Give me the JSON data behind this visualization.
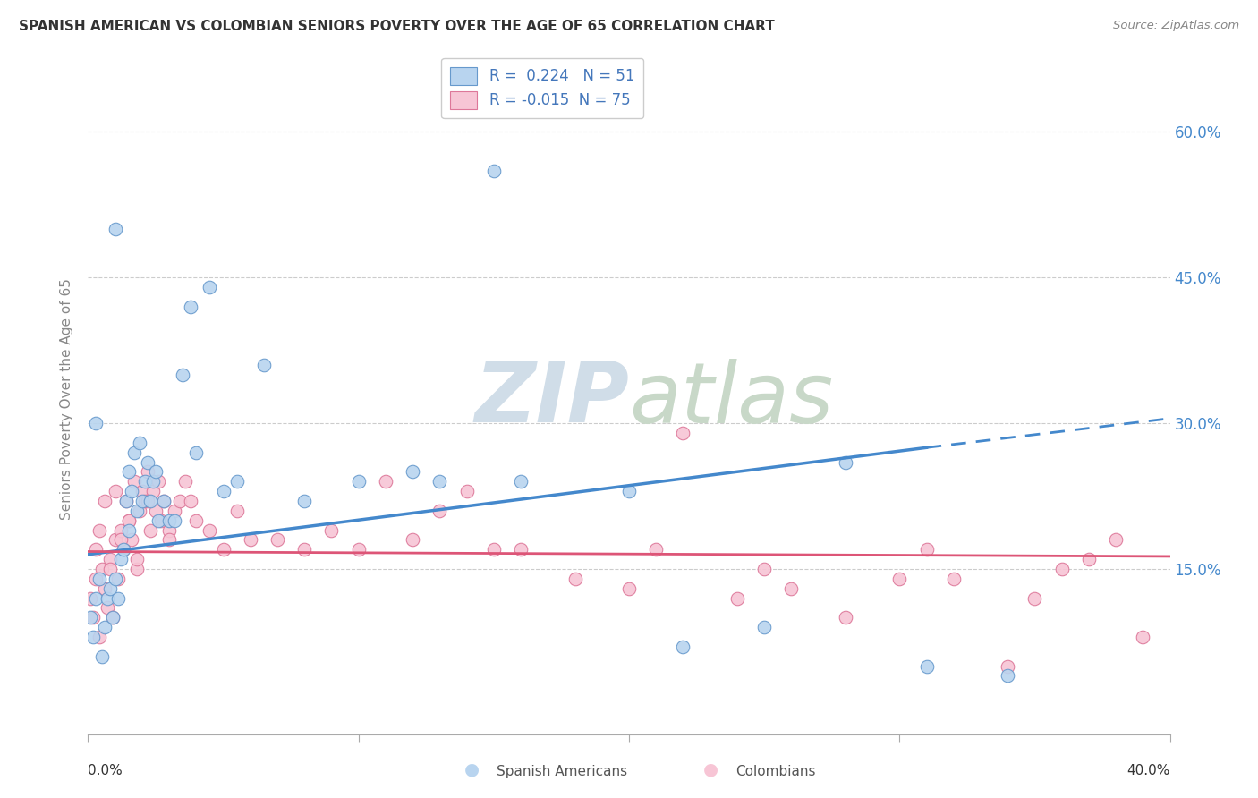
{
  "title": "SPANISH AMERICAN VS COLOMBIAN SENIORS POVERTY OVER THE AGE OF 65 CORRELATION CHART",
  "source": "Source: ZipAtlas.com",
  "ylabel": "Seniors Poverty Over the Age of 65",
  "ytick_labels": [
    "15.0%",
    "30.0%",
    "45.0%",
    "60.0%"
  ],
  "ytick_values": [
    0.15,
    0.3,
    0.45,
    0.6
  ],
  "xlim": [
    0.0,
    0.4
  ],
  "ylim": [
    -0.02,
    0.67
  ],
  "r_blue": 0.224,
  "n_blue": 51,
  "r_pink": -0.015,
  "n_pink": 75,
  "blue_fill_color": "#b8d4ef",
  "pink_fill_color": "#f7c5d5",
  "blue_edge_color": "#6699cc",
  "pink_edge_color": "#dd7799",
  "blue_line_color": "#4488cc",
  "pink_line_color": "#dd5577",
  "watermark_color": "#d0dde8",
  "watermark_color2": "#c8d8c8",
  "blue_trend_start_x": 0.0,
  "blue_trend_start_y": 0.165,
  "blue_trend_end_solid_x": 0.31,
  "blue_trend_end_solid_y": 0.275,
  "blue_trend_end_dashed_x": 0.4,
  "blue_trend_end_dashed_y": 0.305,
  "pink_trend_start_x": 0.0,
  "pink_trend_start_y": 0.168,
  "pink_trend_end_x": 0.4,
  "pink_trend_end_y": 0.163,
  "blue_x": [
    0.001,
    0.002,
    0.003,
    0.004,
    0.005,
    0.006,
    0.007,
    0.008,
    0.009,
    0.01,
    0.01,
    0.011,
    0.012,
    0.013,
    0.014,
    0.015,
    0.015,
    0.016,
    0.017,
    0.018,
    0.019,
    0.02,
    0.021,
    0.022,
    0.023,
    0.024,
    0.025,
    0.026,
    0.028,
    0.03,
    0.032,
    0.035,
    0.038,
    0.04,
    0.045,
    0.05,
    0.055,
    0.065,
    0.08,
    0.1,
    0.12,
    0.13,
    0.15,
    0.16,
    0.2,
    0.22,
    0.25,
    0.28,
    0.31,
    0.34,
    0.003
  ],
  "blue_y": [
    0.1,
    0.08,
    0.12,
    0.14,
    0.06,
    0.09,
    0.12,
    0.13,
    0.1,
    0.14,
    0.5,
    0.12,
    0.16,
    0.17,
    0.22,
    0.19,
    0.25,
    0.23,
    0.27,
    0.21,
    0.28,
    0.22,
    0.24,
    0.26,
    0.22,
    0.24,
    0.25,
    0.2,
    0.22,
    0.2,
    0.2,
    0.35,
    0.42,
    0.27,
    0.44,
    0.23,
    0.24,
    0.36,
    0.22,
    0.24,
    0.25,
    0.24,
    0.56,
    0.24,
    0.23,
    0.07,
    0.09,
    0.26,
    0.05,
    0.04,
    0.3
  ],
  "pink_x": [
    0.001,
    0.002,
    0.003,
    0.004,
    0.005,
    0.006,
    0.007,
    0.008,
    0.009,
    0.01,
    0.011,
    0.012,
    0.013,
    0.014,
    0.015,
    0.016,
    0.017,
    0.018,
    0.019,
    0.02,
    0.021,
    0.022,
    0.023,
    0.024,
    0.025,
    0.026,
    0.027,
    0.028,
    0.03,
    0.032,
    0.034,
    0.036,
    0.038,
    0.04,
    0.045,
    0.05,
    0.055,
    0.06,
    0.07,
    0.08,
    0.09,
    0.1,
    0.11,
    0.12,
    0.13,
    0.14,
    0.15,
    0.16,
    0.18,
    0.2,
    0.21,
    0.22,
    0.24,
    0.25,
    0.26,
    0.28,
    0.3,
    0.31,
    0.32,
    0.34,
    0.35,
    0.36,
    0.37,
    0.38,
    0.39,
    0.003,
    0.004,
    0.006,
    0.008,
    0.01,
    0.012,
    0.015,
    0.018,
    0.022,
    0.03
  ],
  "pink_y": [
    0.12,
    0.1,
    0.14,
    0.08,
    0.15,
    0.13,
    0.11,
    0.16,
    0.1,
    0.18,
    0.14,
    0.19,
    0.17,
    0.22,
    0.2,
    0.18,
    0.24,
    0.15,
    0.21,
    0.23,
    0.22,
    0.25,
    0.19,
    0.23,
    0.21,
    0.24,
    0.2,
    0.22,
    0.19,
    0.21,
    0.22,
    0.24,
    0.22,
    0.2,
    0.19,
    0.17,
    0.21,
    0.18,
    0.18,
    0.17,
    0.19,
    0.17,
    0.24,
    0.18,
    0.21,
    0.23,
    0.17,
    0.17,
    0.14,
    0.13,
    0.17,
    0.29,
    0.12,
    0.15,
    0.13,
    0.1,
    0.14,
    0.17,
    0.14,
    0.05,
    0.12,
    0.15,
    0.16,
    0.18,
    0.08,
    0.17,
    0.19,
    0.22,
    0.15,
    0.23,
    0.18,
    0.2,
    0.16,
    0.22,
    0.18
  ]
}
